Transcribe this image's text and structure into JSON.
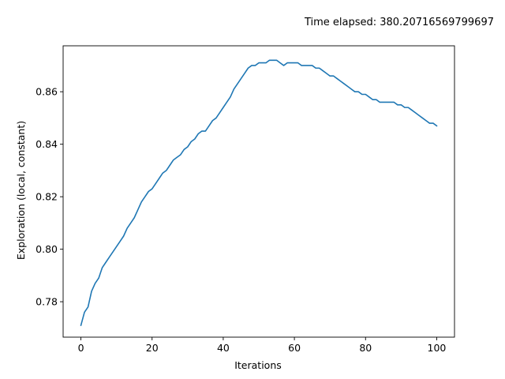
{
  "figure": {
    "annotation": "Time elapsed: 380.20716569799697"
  },
  "chart_data": {
    "type": "line",
    "title": "",
    "xlabel": "Iterations",
    "ylabel": "Exploration (local, constant)",
    "xlim": [
      -5,
      105
    ],
    "ylim": [
      0.7665,
      0.8775
    ],
    "xticks": [
      0,
      20,
      40,
      60,
      80,
      100
    ],
    "yticks": [
      0.78,
      0.8,
      0.82,
      0.84,
      0.86
    ],
    "ytick_labels": [
      "0.78",
      "0.80",
      "0.82",
      "0.84",
      "0.86"
    ],
    "grid": false,
    "legend": "none",
    "series": [
      {
        "color": "#1f77b4",
        "x": [
          0,
          1,
          2,
          3,
          4,
          5,
          6,
          7,
          8,
          9,
          10,
          11,
          12,
          13,
          14,
          15,
          16,
          17,
          18,
          19,
          20,
          21,
          22,
          23,
          24,
          25,
          26,
          27,
          28,
          29,
          30,
          31,
          32,
          33,
          34,
          35,
          36,
          37,
          38,
          39,
          40,
          41,
          42,
          43,
          44,
          45,
          46,
          47,
          48,
          49,
          50,
          51,
          52,
          53,
          54,
          55,
          56,
          57,
          58,
          59,
          60,
          61,
          62,
          63,
          64,
          65,
          66,
          67,
          68,
          69,
          70,
          71,
          72,
          73,
          74,
          75,
          76,
          77,
          78,
          79,
          80,
          81,
          82,
          83,
          84,
          85,
          86,
          87,
          88,
          89,
          90,
          91,
          92,
          93,
          94,
          95,
          96,
          97,
          98,
          99,
          100
        ],
        "y": [
          0.771,
          0.776,
          0.778,
          0.784,
          0.787,
          0.789,
          0.793,
          0.795,
          0.797,
          0.799,
          0.801,
          0.803,
          0.805,
          0.808,
          0.81,
          0.812,
          0.815,
          0.818,
          0.82,
          0.822,
          0.823,
          0.825,
          0.827,
          0.829,
          0.83,
          0.832,
          0.834,
          0.835,
          0.836,
          0.838,
          0.839,
          0.841,
          0.842,
          0.844,
          0.845,
          0.845,
          0.847,
          0.849,
          0.85,
          0.852,
          0.854,
          0.856,
          0.858,
          0.861,
          0.863,
          0.865,
          0.867,
          0.869,
          0.87,
          0.87,
          0.871,
          0.871,
          0.871,
          0.872,
          0.872,
          0.872,
          0.871,
          0.87,
          0.871,
          0.871,
          0.871,
          0.871,
          0.87,
          0.87,
          0.87,
          0.87,
          0.869,
          0.869,
          0.868,
          0.867,
          0.866,
          0.866,
          0.865,
          0.864,
          0.863,
          0.862,
          0.861,
          0.86,
          0.86,
          0.859,
          0.859,
          0.858,
          0.857,
          0.857,
          0.856,
          0.856,
          0.856,
          0.856,
          0.856,
          0.855,
          0.855,
          0.854,
          0.854,
          0.853,
          0.852,
          0.851,
          0.85,
          0.849,
          0.848,
          0.848,
          0.847
        ]
      }
    ]
  }
}
